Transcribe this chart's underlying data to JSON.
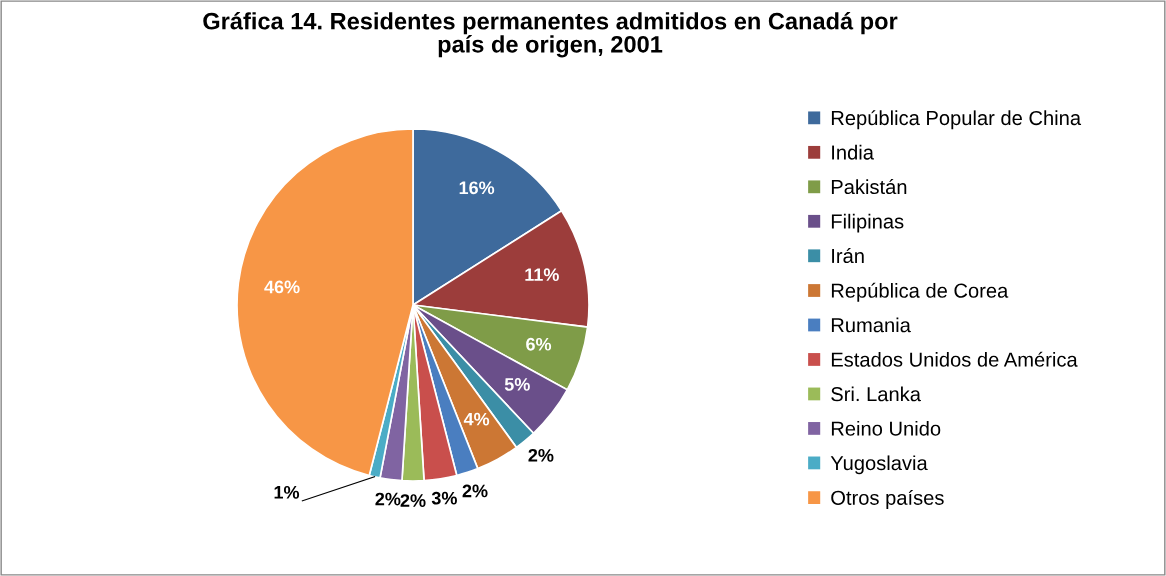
{
  "chart_data": {
    "type": "pie",
    "title": "Gráfica 14. Residentes permanentes admitidos en Canadá por\npaís de origen, 2001",
    "categories": [
      "República Popular de China",
      "India",
      "Pakistán",
      "Filipinas",
      "Irán",
      "República de Corea",
      "Rumania",
      "Estados Unidos de América",
      "Sri. Lanka",
      "Reino Unido",
      "Yugoslavia",
      "Otros países"
    ],
    "values": [
      16,
      11,
      6,
      5,
      2,
      4,
      2,
      3,
      2,
      2,
      1,
      46
    ],
    "value_labels": [
      "16%",
      "11%",
      "6%",
      "5%",
      "2%",
      "4%",
      "2%",
      "3%",
      "2%",
      "2%",
      "1%",
      "46%"
    ],
    "colors": [
      "#3e6a9c",
      "#9c3d3b",
      "#7f9c48",
      "#6a4f8a",
      "#3b8ea6",
      "#cc7734",
      "#4a7ec0",
      "#c94f4c",
      "#9bbb59",
      "#8064a2",
      "#4bacc6",
      "#f79646"
    ],
    "legend": "right"
  }
}
